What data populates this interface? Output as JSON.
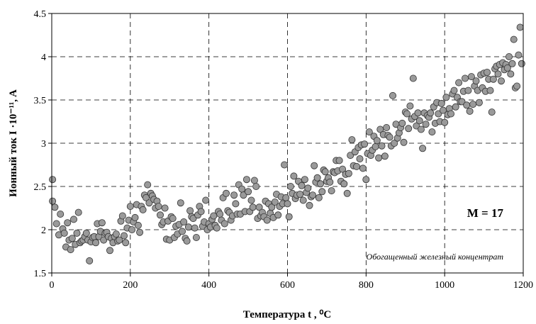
{
  "chart_data": {
    "type": "scatter",
    "title": "",
    "xlabel": "Температура t , ⁰C",
    "ylabel": "Ионный ток I ·10⁻¹¹, A",
    "xlim": [
      0,
      1200
    ],
    "ylim": [
      1.5,
      4.5
    ],
    "x_ticks": [
      "0",
      "200",
      "400",
      "600",
      "800",
      "1000",
      "1200"
    ],
    "y_ticks": [
      "1.5",
      "2",
      "2.5",
      "3",
      "3.5",
      "4",
      "4.5"
    ],
    "grid": true,
    "annotations": [
      "M = 17",
      "Обогащенный железный концентрат"
    ],
    "marker_color": "#9a9a9a",
    "points": [
      [
        2,
        2.58
      ],
      [
        2,
        2.33
      ],
      [
        8,
        2.26
      ],
      [
        12,
        2.07
      ],
      [
        18,
        1.94
      ],
      [
        22,
        2.18
      ],
      [
        28,
        2.01
      ],
      [
        32,
        1.96
      ],
      [
        36,
        1.8
      ],
      [
        40,
        2.08
      ],
      [
        44,
        1.88
      ],
      [
        48,
        1.77
      ],
      [
        52,
        1.9
      ],
      [
        56,
        2.12
      ],
      [
        60,
        1.83
      ],
      [
        64,
        1.96
      ],
      [
        68,
        2.2
      ],
      [
        72,
        1.85
      ],
      [
        76,
        1.87
      ],
      [
        80,
        1.88
      ],
      [
        84,
        1.92
      ],
      [
        88,
        1.96
      ],
      [
        92,
        1.88
      ],
      [
        96,
        1.64
      ],
      [
        100,
        1.86
      ],
      [
        104,
        1.91
      ],
      [
        108,
        1.92
      ],
      [
        112,
        1.85
      ],
      [
        116,
        2.07
      ],
      [
        120,
        1.92
      ],
      [
        124,
        1.98
      ],
      [
        128,
        2.08
      ],
      [
        132,
        1.88
      ],
      [
        136,
        1.96
      ],
      [
        140,
        1.97
      ],
      [
        144,
        1.92
      ],
      [
        148,
        1.76
      ],
      [
        152,
        1.9
      ],
      [
        156,
        1.85
      ],
      [
        160,
        1.92
      ],
      [
        164,
        1.95
      ],
      [
        168,
        1.87
      ],
      [
        172,
        1.88
      ],
      [
        176,
        2.1
      ],
      [
        180,
        2.16
      ],
      [
        184,
        1.93
      ],
      [
        188,
        1.85
      ],
      [
        192,
        2.02
      ],
      [
        196,
        2.11
      ],
      [
        200,
        2.27
      ],
      [
        204,
        2.0
      ],
      [
        208,
        2.09
      ],
      [
        212,
        2.14
      ],
      [
        216,
        2.29
      ],
      [
        220,
        2.05
      ],
      [
        224,
        1.97
      ],
      [
        228,
        2.27
      ],
      [
        232,
        2.23
      ],
      [
        236,
        2.4
      ],
      [
        240,
        2.37
      ],
      [
        244,
        2.52
      ],
      [
        248,
        2.31
      ],
      [
        252,
        2.42
      ],
      [
        256,
        2.39
      ],
      [
        260,
        2.35
      ],
      [
        264,
        2.25
      ],
      [
        268,
        2.33
      ],
      [
        272,
        2.27
      ],
      [
        276,
        2.17
      ],
      [
        280,
        2.06
      ],
      [
        284,
        2.09
      ],
      [
        288,
        2.25
      ],
      [
        292,
        1.89
      ],
      [
        296,
        2.1
      ],
      [
        300,
        1.88
      ],
      [
        304,
        2.15
      ],
      [
        308,
        2.13
      ],
      [
        312,
        1.91
      ],
      [
        316,
        2.04
      ],
      [
        320,
        1.95
      ],
      [
        324,
        2.06
      ],
      [
        328,
        2.31
      ],
      [
        332,
        1.98
      ],
      [
        336,
        2.09
      ],
      [
        340,
        1.9
      ],
      [
        344,
        1.87
      ],
      [
        348,
        2.03
      ],
      [
        352,
        2.22
      ],
      [
        356,
        2.15
      ],
      [
        360,
        2.13
      ],
      [
        364,
        2.02
      ],
      [
        368,
        1.91
      ],
      [
        372,
        2.17
      ],
      [
        376,
        2.27
      ],
      [
        380,
        2.21
      ],
      [
        384,
        2.04
      ],
      [
        388,
        2.09
      ],
      [
        392,
        2.34
      ],
      [
        396,
        2.0
      ],
      [
        400,
        2.07
      ],
      [
        404,
        2.03
      ],
      [
        408,
        2.12
      ],
      [
        412,
        2.16
      ],
      [
        416,
        2.05
      ],
      [
        420,
        2.02
      ],
      [
        424,
        2.21
      ],
      [
        428,
        2.18
      ],
      [
        432,
        2.11
      ],
      [
        436,
        2.37
      ],
      [
        440,
        2.07
      ],
      [
        444,
        2.42
      ],
      [
        448,
        2.22
      ],
      [
        452,
        2.2
      ],
      [
        456,
        2.11
      ],
      [
        460,
        2.16
      ],
      [
        464,
        2.4
      ],
      [
        468,
        2.3
      ],
      [
        472,
        2.18
      ],
      [
        476,
        2.52
      ],
      [
        480,
        2.18
      ],
      [
        484,
        2.47
      ],
      [
        488,
        2.4
      ],
      [
        492,
        2.21
      ],
      [
        496,
        2.58
      ],
      [
        500,
        2.44
      ],
      [
        504,
        2.21
      ],
      [
        508,
        2.34
      ],
      [
        512,
        2.26
      ],
      [
        516,
        2.57
      ],
      [
        520,
        2.5
      ],
      [
        524,
        2.13
      ],
      [
        528,
        2.26
      ],
      [
        532,
        2.16
      ],
      [
        536,
        2.2
      ],
      [
        540,
        2.15
      ],
      [
        544,
        2.33
      ],
      [
        548,
        2.11
      ],
      [
        552,
        2.3
      ],
      [
        556,
        2.19
      ],
      [
        560,
        2.26
      ],
      [
        564,
        2.14
      ],
      [
        568,
        2.32
      ],
      [
        572,
        2.41
      ],
      [
        576,
        2.17
      ],
      [
        580,
        2.27
      ],
      [
        584,
        2.38
      ],
      [
        588,
        2.3
      ],
      [
        592,
        2.75
      ],
      [
        596,
        2.37
      ],
      [
        600,
        2.3
      ],
      [
        604,
        2.15
      ],
      [
        608,
        2.5
      ],
      [
        612,
        2.42
      ],
      [
        616,
        2.62
      ],
      [
        620,
        2.36
      ],
      [
        624,
        2.4
      ],
      [
        628,
        2.56
      ],
      [
        632,
        2.41
      ],
      [
        636,
        2.51
      ],
      [
        640,
        2.34
      ],
      [
        644,
        2.58
      ],
      [
        648,
        2.43
      ],
      [
        652,
        2.48
      ],
      [
        656,
        2.28
      ],
      [
        660,
        2.38
      ],
      [
        664,
        2.4
      ],
      [
        668,
        2.74
      ],
      [
        672,
        2.55
      ],
      [
        676,
        2.6
      ],
      [
        680,
        2.37
      ],
      [
        684,
        2.53
      ],
      [
        688,
        2.44
      ],
      [
        692,
        2.69
      ],
      [
        696,
        2.67
      ],
      [
        700,
        2.56
      ],
      [
        704,
        2.6
      ],
      [
        708,
        2.55
      ],
      [
        712,
        2.45
      ],
      [
        716,
        2.67
      ],
      [
        720,
        2.66
      ],
      [
        724,
        2.8
      ],
      [
        728,
        2.68
      ],
      [
        732,
        2.8
      ],
      [
        736,
        2.56
      ],
      [
        740,
        2.7
      ],
      [
        744,
        2.53
      ],
      [
        748,
        2.64
      ],
      [
        752,
        2.42
      ],
      [
        756,
        2.65
      ],
      [
        760,
        2.86
      ],
      [
        764,
        3.04
      ],
      [
        768,
        2.74
      ],
      [
        772,
        2.9
      ],
      [
        776,
        2.73
      ],
      [
        780,
        2.95
      ],
      [
        784,
        2.82
      ],
      [
        788,
        2.98
      ],
      [
        792,
        2.71
      ],
      [
        796,
        2.99
      ],
      [
        800,
        2.58
      ],
      [
        804,
        2.88
      ],
      [
        808,
        3.13
      ],
      [
        812,
        2.86
      ],
      [
        816,
        2.92
      ],
      [
        820,
        3.08
      ],
      [
        824,
        2.96
      ],
      [
        828,
        3.03
      ],
      [
        832,
        2.83
      ],
      [
        836,
        3.16
      ],
      [
        840,
        2.97
      ],
      [
        844,
        3.1
      ],
      [
        848,
        2.85
      ],
      [
        852,
        3.18
      ],
      [
        856,
        3.09
      ],
      [
        860,
        3.07
      ],
      [
        864,
        2.97
      ],
      [
        868,
        3.55
      ],
      [
        872,
        3.0
      ],
      [
        876,
        3.22
      ],
      [
        880,
        3.06
      ],
      [
        884,
        3.12
      ],
      [
        888,
        3.18
      ],
      [
        892,
        3.23
      ],
      [
        896,
        3.01
      ],
      [
        900,
        3.36
      ],
      [
        904,
        3.34
      ],
      [
        908,
        3.17
      ],
      [
        912,
        3.43
      ],
      [
        916,
        3.28
      ],
      [
        920,
        3.75
      ],
      [
        924,
        3.31
      ],
      [
        928,
        3.2
      ],
      [
        932,
        3.35
      ],
      [
        936,
        3.26
      ],
      [
        940,
        3.16
      ],
      [
        944,
        2.94
      ],
      [
        948,
        3.35
      ],
      [
        952,
        3.22
      ],
      [
        956,
        3.32
      ],
      [
        960,
        3.3
      ],
      [
        964,
        3.35
      ],
      [
        968,
        3.13
      ],
      [
        972,
        3.42
      ],
      [
        976,
        3.23
      ],
      [
        980,
        3.47
      ],
      [
        984,
        3.34
      ],
      [
        988,
        3.25
      ],
      [
        992,
        3.46
      ],
      [
        996,
        3.38
      ],
      [
        1000,
        3.24
      ],
      [
        1004,
        3.53
      ],
      [
        1008,
        3.33
      ],
      [
        1012,
        3.4
      ],
      [
        1016,
        3.34
      ],
      [
        1020,
        3.57
      ],
      [
        1024,
        3.61
      ],
      [
        1028,
        3.42
      ],
      [
        1032,
        3.53
      ],
      [
        1036,
        3.7
      ],
      [
        1040,
        3.48
      ],
      [
        1044,
        3.48
      ],
      [
        1048,
        3.6
      ],
      [
        1052,
        3.75
      ],
      [
        1056,
        3.44
      ],
      [
        1060,
        3.61
      ],
      [
        1064,
        3.37
      ],
      [
        1068,
        3.77
      ],
      [
        1072,
        3.45
      ],
      [
        1076,
        3.66
      ],
      [
        1080,
        3.72
      ],
      [
        1084,
        3.61
      ],
      [
        1088,
        3.47
      ],
      [
        1092,
        3.79
      ],
      [
        1096,
        3.64
      ],
      [
        1100,
        3.81
      ],
      [
        1104,
        3.6
      ],
      [
        1108,
        3.82
      ],
      [
        1112,
        3.74
      ],
      [
        1116,
        3.61
      ],
      [
        1120,
        3.36
      ],
      [
        1124,
        3.74
      ],
      [
        1128,
        3.86
      ],
      [
        1132,
        3.89
      ],
      [
        1136,
        3.8
      ],
      [
        1140,
        3.91
      ],
      [
        1144,
        3.72
      ],
      [
        1148,
        3.93
      ],
      [
        1152,
        3.85
      ],
      [
        1156,
        3.91
      ],
      [
        1160,
        3.87
      ],
      [
        1164,
        4.0
      ],
      [
        1168,
        3.8
      ],
      [
        1172,
        3.92
      ],
      [
        1176,
        4.2
      ],
      [
        1180,
        3.64
      ],
      [
        1184,
        3.66
      ],
      [
        1188,
        4.02
      ],
      [
        1192,
        4.34
      ],
      [
        1196,
        3.92
      ]
    ]
  }
}
